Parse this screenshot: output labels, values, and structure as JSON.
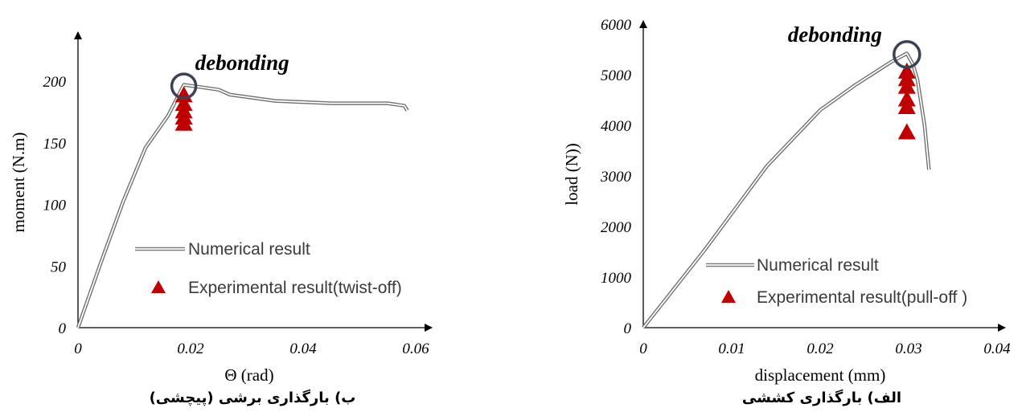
{
  "chart_data": [
    {
      "type": "line",
      "panel": "left",
      "title": "",
      "caption": "ب) بارگذاری برشی (پیچشی)",
      "xlabel": "Θ (rad)",
      "ylabel": "moment (N.m)",
      "xlim": [
        0,
        0.075
      ],
      "ylim": [
        0,
        240
      ],
      "xticks": [
        0,
        0.02,
        0.04,
        0.06
      ],
      "xtick_labels": [
        "0",
        "0.02",
        "0.04",
        "0.06"
      ],
      "yticks": [
        0,
        50,
        100,
        150,
        200
      ],
      "ytick_labels": [
        "0",
        "50",
        "100",
        "150",
        "200"
      ],
      "grid": false,
      "legend_position": "center",
      "annotation": {
        "text": "debonding",
        "x": 0.0188,
        "y": 196
      },
      "series": [
        {
          "name": "Numerical result",
          "kind": "line",
          "x": [
            0,
            0.004,
            0.008,
            0.012,
            0.016,
            0.0188,
            0.022,
            0.025,
            0.027,
            0.035,
            0.045,
            0.055,
            0.058,
            0.0585
          ],
          "y": [
            0,
            52,
            102,
            146,
            172,
            197,
            195,
            193,
            189,
            184,
            182,
            182,
            180,
            176
          ]
        },
        {
          "name": "Experimental result(twist-off)",
          "kind": "scatter",
          "x": [
            0.0188,
            0.0188,
            0.0188,
            0.0188,
            0.0188
          ],
          "y": [
            188,
            181,
            175,
            170,
            165
          ]
        }
      ]
    },
    {
      "type": "line",
      "panel": "right",
      "title": "",
      "caption": "الف) بارگذاری کششی",
      "xlabel": "displacement (mm)",
      "ylabel": "load (N))",
      "xlim": [
        0,
        0.04
      ],
      "ylim": [
        0,
        6000
      ],
      "xticks": [
        0,
        0.01,
        0.02,
        0.03,
        0.04
      ],
      "xtick_labels": [
        "0",
        "0.01",
        "0.02",
        "0.03",
        "0.04"
      ],
      "yticks": [
        0,
        1000,
        2000,
        3000,
        4000,
        5000,
        6000
      ],
      "ytick_labels": [
        "0",
        "1000",
        "2000",
        "3000",
        "4000",
        "5000",
        "6000"
      ],
      "grid": false,
      "legend_position": "center",
      "annotation": {
        "text": "debonding",
        "x": 0.0298,
        "y": 5400
      },
      "series": [
        {
          "name": "Numerical result",
          "kind": "line",
          "x": [
            0,
            0.007,
            0.014,
            0.02,
            0.024,
            0.028,
            0.0298,
            0.0305,
            0.031,
            0.0318,
            0.0323
          ],
          "y": [
            0,
            1550,
            3200,
            4300,
            4800,
            5250,
            5420,
            5200,
            4900,
            4000,
            3120
          ]
        },
        {
          "name": "Experimental result(pull-off )",
          "kind": "scatter",
          "x": [
            0.0298,
            0.0298,
            0.0298,
            0.0298,
            0.0298,
            0.0298
          ],
          "y": [
            5050,
            4900,
            4750,
            4500,
            4350,
            3850
          ]
        }
      ]
    }
  ]
}
